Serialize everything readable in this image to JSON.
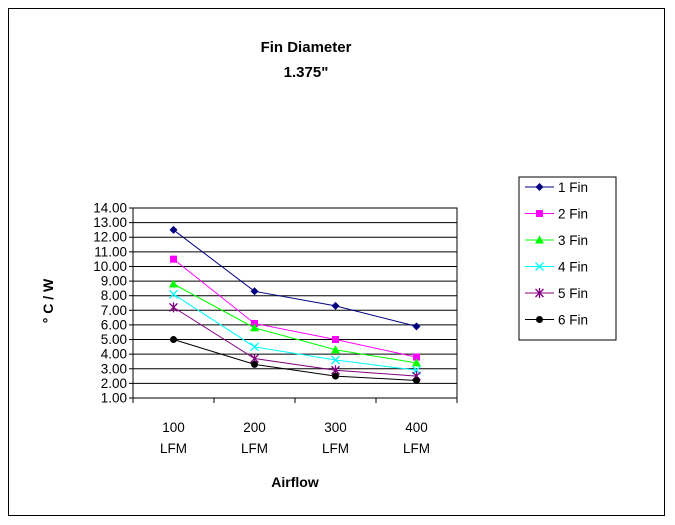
{
  "chart_data": {
    "type": "line",
    "title": [
      "Fin Diameter",
      "1.375\""
    ],
    "xlabel": "Airflow",
    "ylabel": "° C / W",
    "categories": [
      [
        "100",
        "LFM"
      ],
      [
        "200",
        "LFM"
      ],
      [
        "300",
        "LFM"
      ],
      [
        "400",
        "LFM"
      ]
    ],
    "ylim": [
      1.0,
      14.0
    ],
    "yticks": [
      "14.00",
      "13.00",
      "12.00",
      "11.00",
      "10.00",
      "9.00",
      "8.00",
      "7.00",
      "6.00",
      "5.00",
      "4.00",
      "3.00",
      "2.00",
      "1.00"
    ],
    "ytick_values": [
      14,
      13,
      12,
      11,
      10,
      9,
      8,
      7,
      6,
      5,
      4,
      3,
      2,
      1
    ],
    "grid": true,
    "legend_position": "right",
    "series": [
      {
        "name": "1 Fin",
        "color": "#000080",
        "marker": "diamond",
        "values": [
          12.5,
          8.3,
          7.3,
          5.9
        ]
      },
      {
        "name": "2 Fin",
        "color": "#FF00FF",
        "marker": "square",
        "values": [
          10.5,
          6.1,
          5.0,
          3.8
        ]
      },
      {
        "name": "3 Fin",
        "color": "#00FF00",
        "marker": "triangle",
        "values": [
          8.8,
          5.8,
          4.3,
          3.4
        ]
      },
      {
        "name": "4 Fin",
        "color": "#00FFFF",
        "marker": "x",
        "values": [
          8.1,
          4.5,
          3.6,
          2.9
        ]
      },
      {
        "name": "5 Fin",
        "color": "#800080",
        "marker": "star",
        "values": [
          7.2,
          3.7,
          2.9,
          2.5
        ]
      },
      {
        "name": "6 Fin",
        "color": "#000000",
        "marker": "circle",
        "values": [
          5.0,
          3.3,
          2.5,
          2.2
        ]
      }
    ]
  }
}
